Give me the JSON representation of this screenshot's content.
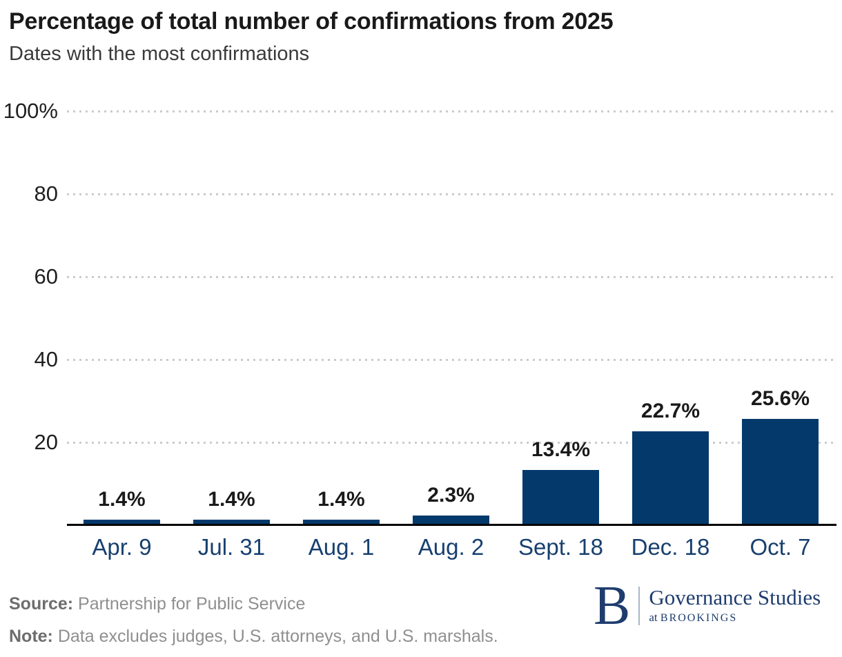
{
  "header": {
    "title": "Percentage of total number of confirmations from 2025",
    "subtitle": "Dates with the most confirmations"
  },
  "chart_data": {
    "type": "bar",
    "title": "Percentage of total number of confirmations from 2025",
    "subtitle": "Dates with the most confirmations",
    "categories": [
      "Apr. 9",
      "Jul. 31",
      "Aug. 1",
      "Aug. 2",
      "Sept. 18",
      "Dec. 18",
      "Oct. 7"
    ],
    "values": [
      1.4,
      1.4,
      1.4,
      2.3,
      13.4,
      22.7,
      25.6
    ],
    "bar_labels": [
      "1.4%",
      "1.4%",
      "1.4%",
      "2.3%",
      "13.4%",
      "22.7%",
      "25.6%"
    ],
    "xlabel": "",
    "ylabel": "",
    "ylim": [
      0,
      100
    ],
    "yticks": [
      100,
      80,
      60,
      40,
      20
    ],
    "ytick_labels": [
      "100%",
      "80",
      "60",
      "40",
      "20"
    ],
    "grid": "horizontal-dotted",
    "legend": "none",
    "bar_color": "#04396C"
  },
  "footer": {
    "source_label": "Source:",
    "source_text": " Partnership for Public Service",
    "note_label": "Note:",
    "note_text": " Data excludes judges, U.S. attorneys, and U.S. marshals."
  },
  "logo": {
    "monogram": "B",
    "org": "Governance Studies",
    "sub_prefix": "at ",
    "sub_org": "BROOKINGS"
  },
  "colors": {
    "bar": "#04396C",
    "x_axis_label": "#17406F",
    "gridline": "#CBCBCB",
    "baseline": "#000000",
    "title": "#191919",
    "subtitle": "#3A3A3A",
    "value_label": "#1A1A1A",
    "ytick_label": "#1F1F1F",
    "footer_label": "#6D6D6D",
    "footer_text": "#8F8F8F",
    "logo_navy": "#1E3C6E",
    "logo_divider": "#A8B7CB"
  }
}
